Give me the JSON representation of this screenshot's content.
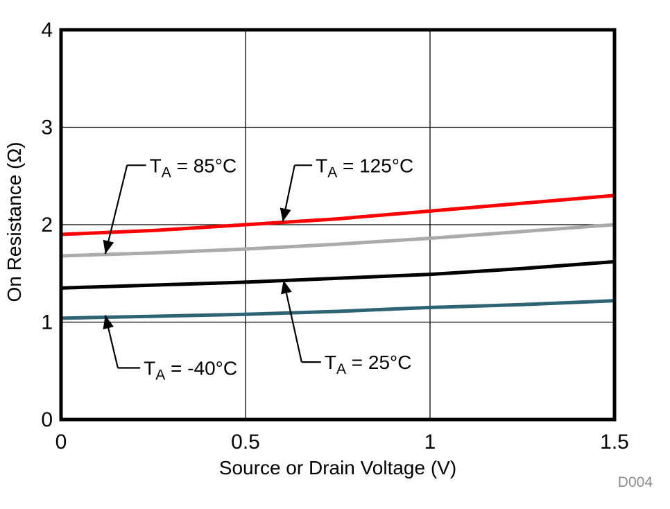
{
  "figure_id": "D004",
  "chart_data": {
    "type": "line",
    "title": "",
    "xlabel": "Source or Drain Voltage (V)",
    "ylabel": "On Resistance (Ω)",
    "xlim": [
      0,
      1.5
    ],
    "ylim": [
      0,
      4
    ],
    "grid": true,
    "legend_position": "none (inline arrow annotations)",
    "xticks": {
      "values": [
        0,
        0.5,
        1,
        1.5
      ],
      "labels": [
        "0",
        "0.5",
        "1",
        "1.5"
      ]
    },
    "yticks": {
      "values": [
        0,
        1,
        2,
        3,
        4
      ],
      "labels": [
        "0",
        "1",
        "2",
        "3",
        "4"
      ]
    },
    "x": [
      0,
      0.25,
      0.5,
      0.75,
      1,
      1.25,
      1.5
    ],
    "series": [
      {
        "name": "TA = 125°C",
        "color": "#ff0000",
        "values": [
          1.9,
          1.94,
          2.0,
          2.06,
          2.14,
          2.22,
          2.3
        ]
      },
      {
        "name": "TA = 85°C",
        "color": "#ababab",
        "values": [
          1.68,
          1.71,
          1.75,
          1.8,
          1.86,
          1.93,
          2.0
        ]
      },
      {
        "name": "TA = 25°C",
        "color": "#000000",
        "values": [
          1.35,
          1.38,
          1.41,
          1.45,
          1.49,
          1.55,
          1.62
        ]
      },
      {
        "name": "TA = -40°C",
        "color": "#2e6374",
        "values": [
          1.04,
          1.06,
          1.08,
          1.11,
          1.15,
          1.18,
          1.22
        ]
      }
    ],
    "annotations": [
      {
        "main": "T",
        "sub": "A",
        "rest": " = 85°C",
        "tip": [
          0.12,
          1.7
        ],
        "elbow": [
          0.179,
          2.61
        ],
        "text_start": [
          0.24,
          2.61
        ]
      },
      {
        "main": "T",
        "sub": "A",
        "rest": " = 125°C",
        "tip": [
          0.601,
          2.03
        ],
        "elbow": [
          0.633,
          2.61
        ],
        "text_start": [
          0.69,
          2.61
        ]
      },
      {
        "main": "T",
        "sub": "A",
        "rest": " = -40°C",
        "tip": [
          0.12,
          1.07
        ],
        "elbow": [
          0.154,
          0.53
        ],
        "text_start": [
          0.224,
          0.53
        ]
      },
      {
        "main": "T",
        "sub": "A",
        "rest": " = 25°C",
        "tip": [
          0.603,
          1.43
        ],
        "elbow": [
          0.652,
          0.59
        ],
        "text_start": [
          0.714,
          0.59
        ]
      }
    ]
  }
}
